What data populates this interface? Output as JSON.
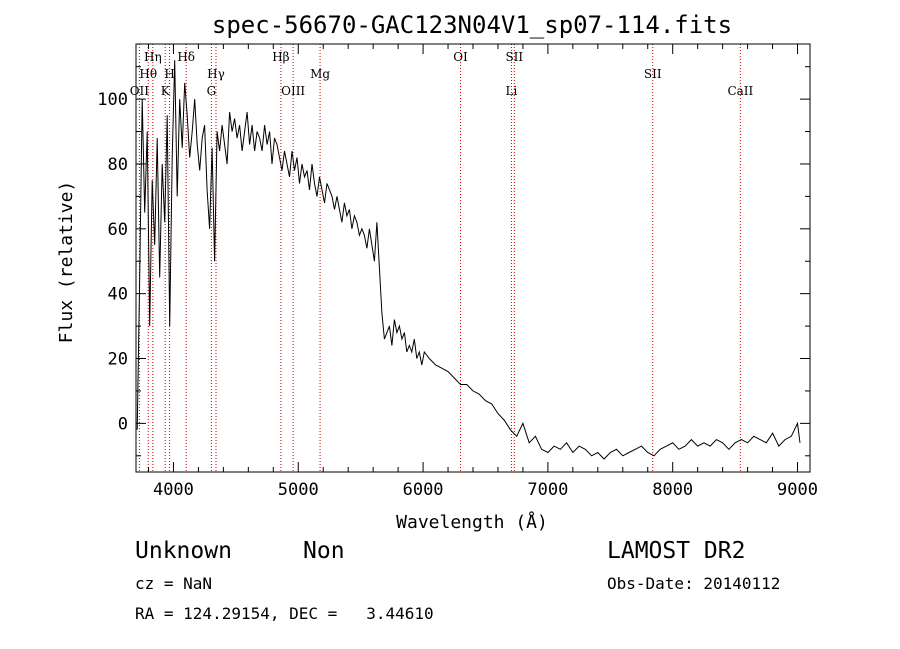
{
  "chart_data": {
    "type": "line",
    "title": "spec-56670-GAC123N04V1_sp07-114.fits",
    "xlabel": "Wavelength (Å)",
    "ylabel": "Flux (relative)",
    "xlim": [
      3700,
      9100
    ],
    "ylim": [
      -15,
      117
    ],
    "xticks": [
      4000,
      5000,
      6000,
      7000,
      8000,
      9000
    ],
    "yticks": [
      0,
      20,
      40,
      60,
      80,
      100
    ],
    "grid": false,
    "line_color": "#000000",
    "marker_color": "#cc0000",
    "series": [
      {
        "x": [
          3710,
          3730,
          3750,
          3770,
          3790,
          3810,
          3830,
          3850,
          3870,
          3890,
          3910,
          3930,
          3950,
          3970,
          3990,
          4010,
          4030,
          4050,
          4070,
          4090,
          4110,
          4130,
          4150,
          4170,
          4190,
          4210,
          4230,
          4250,
          4270,
          4290,
          4310,
          4330,
          4350,
          4370,
          4390,
          4410,
          4430,
          4450,
          4470,
          4490,
          4510,
          4530,
          4550,
          4570,
          4590,
          4610,
          4630,
          4650,
          4670,
          4690,
          4710,
          4730,
          4750,
          4770,
          4790,
          4810,
          4830,
          4850,
          4870,
          4890,
          4910,
          4930,
          4950,
          4970,
          4990,
          5010,
          5030,
          5050,
          5070,
          5090,
          5110,
          5130,
          5150,
          5170,
          5190,
          5210,
          5230,
          5250,
          5270,
          5290,
          5310,
          5330,
          5350,
          5370,
          5390,
          5410,
          5430,
          5450,
          5470,
          5490,
          5510,
          5530,
          5550,
          5570,
          5590,
          5610,
          5630,
          5650,
          5670,
          5690,
          5710,
          5730,
          5750,
          5770,
          5790,
          5810,
          5830,
          5850,
          5870,
          5890,
          5910,
          5930,
          5950,
          5970,
          5990,
          6010,
          6050,
          6100,
          6150,
          6200,
          6250,
          6300,
          6350,
          6400,
          6450,
          6500,
          6550,
          6600,
          6650,
          6700,
          6750,
          6800,
          6850,
          6900,
          6950,
          7000,
          7050,
          7100,
          7150,
          7200,
          7250,
          7300,
          7350,
          7400,
          7450,
          7500,
          7550,
          7600,
          7650,
          7700,
          7750,
          7800,
          7850,
          7900,
          7950,
          8000,
          8050,
          8100,
          8150,
          8200,
          8250,
          8300,
          8350,
          8400,
          8450,
          8500,
          8550,
          8600,
          8650,
          8700,
          8750,
          8800,
          8850,
          8900,
          8950,
          9000,
          9020
        ],
        "y": [
          -2,
          45,
          100,
          65,
          90,
          30,
          75,
          55,
          88,
          45,
          80,
          62,
          95,
          30,
          82,
          112,
          70,
          100,
          85,
          105,
          95,
          82,
          90,
          100,
          86,
          78,
          88,
          92,
          72,
          60,
          85,
          50,
          90,
          84,
          92,
          86,
          80,
          96,
          90,
          94,
          88,
          92,
          84,
          90,
          96,
          86,
          92,
          84,
          90,
          88,
          84,
          92,
          86,
          90,
          80,
          88,
          86,
          82,
          78,
          84,
          80,
          76,
          84,
          78,
          82,
          74,
          80,
          76,
          78,
          72,
          80,
          74,
          70,
          76,
          72,
          68,
          74,
          72,
          70,
          66,
          70,
          66,
          62,
          68,
          64,
          66,
          60,
          64,
          62,
          58,
          60,
          58,
          54,
          60,
          55,
          50,
          62,
          48,
          34,
          26,
          28,
          30,
          24,
          32,
          28,
          30,
          26,
          28,
          22,
          24,
          22,
          26,
          20,
          22,
          18,
          22,
          20,
          18,
          17,
          16,
          14,
          12,
          12,
          10,
          9,
          7,
          6,
          3,
          1,
          -2,
          -4,
          0,
          -6,
          -4,
          -8,
          -9,
          -7,
          -8,
          -6,
          -9,
          -7,
          -8,
          -10,
          -9,
          -11,
          -9,
          -8,
          -10,
          -9,
          -8,
          -7,
          -9,
          -10,
          -8,
          -7,
          -6,
          -8,
          -7,
          -5,
          -7,
          -6,
          -7,
          -5,
          -6,
          -8,
          -6,
          -5,
          -6,
          -4,
          -5,
          -6,
          -3,
          -7,
          -5,
          -4,
          0,
          -6
        ]
      }
    ],
    "spectral_lines": [
      {
        "label": "OII",
        "x": 3727,
        "row": 3
      },
      {
        "label": "Hθ",
        "x": 3798,
        "row": 2
      },
      {
        "label": "Hη",
        "x": 3835,
        "row": 1
      },
      {
        "label": "K",
        "x": 3934,
        "row": 3
      },
      {
        "label": "H",
        "x": 3969,
        "row": 2
      },
      {
        "label": "Hδ",
        "x": 4102,
        "row": 1
      },
      {
        "label": "G",
        "x": 4304,
        "row": 3
      },
      {
        "label": "Hγ",
        "x": 4341,
        "row": 2
      },
      {
        "label": "Hβ",
        "x": 4861,
        "row": 1
      },
      {
        "label": "OIII",
        "x": 4959,
        "row": 3
      },
      {
        "label": "Mg",
        "x": 5175,
        "row": 2
      },
      {
        "label": "OI",
        "x": 6300,
        "row": 1
      },
      {
        "label": "Li",
        "x": 6708,
        "row": 3
      },
      {
        "label": "SII",
        "x": 6731,
        "row": 1
      },
      {
        "label": "SII",
        "x": 7840,
        "row": 2
      },
      {
        "label": "CaII",
        "x": 8542,
        "row": 3
      }
    ]
  },
  "info": {
    "object_class": "Unknown",
    "object_subclass": "Non",
    "survey": "LAMOST DR2",
    "redshift": "cz = NaN",
    "obs_date": "Obs-Date: 20140112",
    "coords": "RA = 124.29154, DEC =   3.44610"
  }
}
